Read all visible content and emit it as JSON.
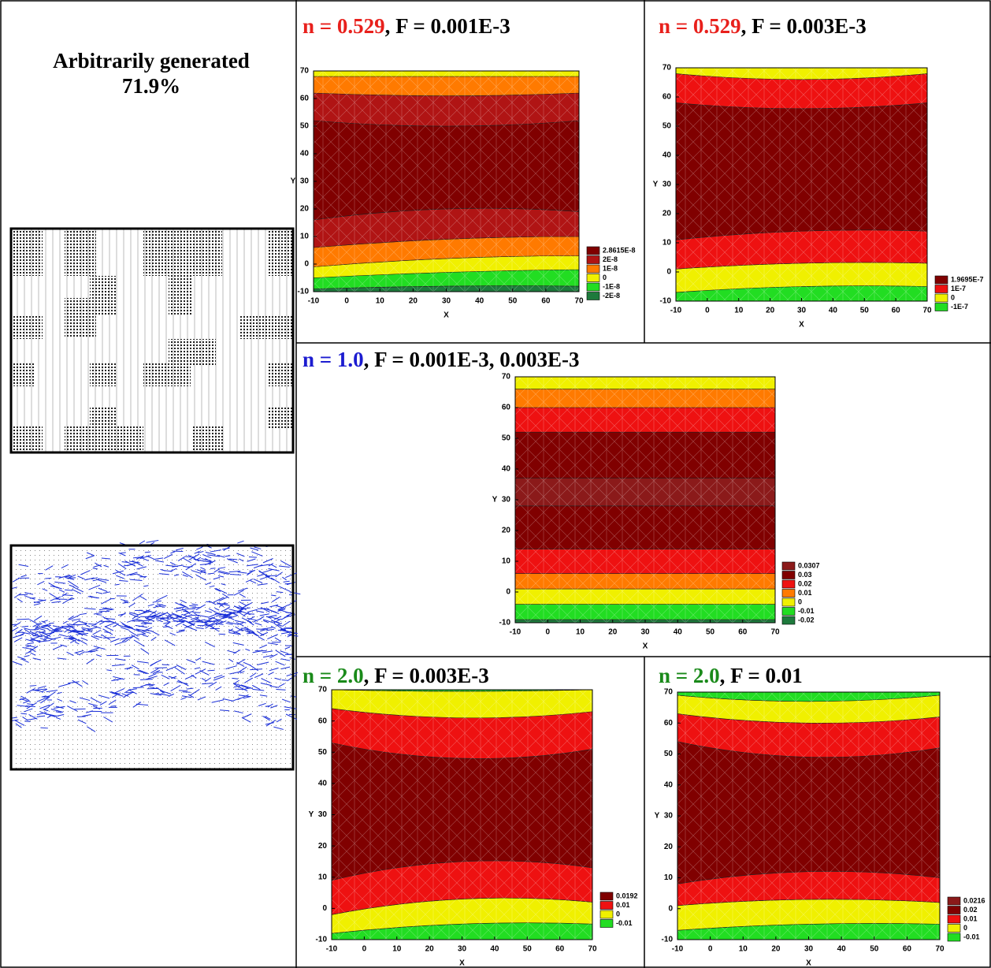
{
  "intro": {
    "title": "Arbitrarily generated",
    "percent": "71.9%"
  },
  "panels": [
    {
      "title": {
        "n": "n = 0.529",
        "rest": ",  F = 0.001E-3",
        "n_color": "#e8201c"
      },
      "xlabel": "X",
      "ylabel": "Y",
      "xlim": [
        -10,
        70
      ],
      "ylim": [
        -10,
        70
      ],
      "xticks": [
        -10,
        0,
        10,
        20,
        30,
        40,
        50,
        60,
        70
      ],
      "yticks": [
        -10,
        0,
        10,
        20,
        30,
        40,
        50,
        60,
        70
      ],
      "bands": [
        {
          "color": "#1e7a3c",
          "upper": [
            -9,
            -8,
            -8
          ]
        },
        {
          "color": "#22dd22",
          "upper": [
            -5,
            -3,
            -2
          ]
        },
        {
          "color": "#f0f000",
          "upper": [
            -1,
            2,
            3
          ]
        },
        {
          "color": "#ff7a00",
          "upper": [
            6,
            9,
            10
          ]
        },
        {
          "color": "#b01414",
          "upper": [
            16,
            20,
            19
          ]
        },
        {
          "color": "#800000",
          "upper": [
            52,
            50,
            52
          ]
        },
        {
          "color": "#b01414",
          "upper": [
            62,
            61,
            62
          ]
        },
        {
          "color": "#ff7a00",
          "upper": [
            68,
            68,
            68
          ]
        },
        {
          "color": "#f0f000"
        }
      ],
      "legend": [
        {
          "label": "2.8615E-8",
          "color": "#800000"
        },
        {
          "label": "2E-8",
          "color": "#b01414"
        },
        {
          "label": "1E-8",
          "color": "#ff7a00"
        },
        {
          "label": "0",
          "color": "#f0f000"
        },
        {
          "label": "-1E-8",
          "color": "#22dd22"
        },
        {
          "label": "-2E-8",
          "color": "#1e7a3c"
        }
      ]
    },
    {
      "title": {
        "n": "n = 0.529",
        "rest": ",  F = 0.003E-3",
        "n_color": "#e8201c"
      },
      "xlabel": "X",
      "ylabel": "Y",
      "xlim": [
        -10,
        70
      ],
      "ylim": [
        -10,
        70
      ],
      "xticks": [
        -10,
        0,
        10,
        20,
        30,
        40,
        50,
        60,
        70
      ],
      "yticks": [
        -10,
        0,
        10,
        20,
        30,
        40,
        50,
        60,
        70
      ],
      "bands": [
        {
          "color": "#22dd22",
          "upper": [
            -7,
            -5,
            -5
          ]
        },
        {
          "color": "#f0f000",
          "upper": [
            1,
            3,
            3
          ]
        },
        {
          "color": "#ee1111",
          "upper": [
            11,
            14,
            14
          ]
        },
        {
          "color": "#800000",
          "upper": [
            58,
            56,
            58
          ]
        },
        {
          "color": "#ee1111",
          "upper": [
            68,
            66,
            68
          ]
        },
        {
          "color": "#f0f000"
        }
      ],
      "legend": [
        {
          "label": "1.9695E-7",
          "color": "#800000"
        },
        {
          "label": "1E-7",
          "color": "#ee1111"
        },
        {
          "label": "0",
          "color": "#f0f000"
        },
        {
          "label": "-1E-7",
          "color": "#22dd22"
        }
      ]
    },
    {
      "title": {
        "n": "n = 1.0",
        "rest": ",  F = 0.001E-3, 0.003E-3",
        "n_color": "#1c1cd0"
      },
      "xlabel": "X",
      "ylabel": "Y",
      "xlim": [
        -10,
        70
      ],
      "ylim": [
        -10,
        70
      ],
      "xticks": [
        -10,
        0,
        10,
        20,
        30,
        40,
        50,
        60,
        70
      ],
      "yticks": [
        -10,
        0,
        10,
        20,
        30,
        40,
        50,
        60,
        70
      ],
      "bands": [
        {
          "color": "#1e7a3c",
          "upper": [
            -9,
            -9,
            -9
          ]
        },
        {
          "color": "#22dd22",
          "upper": [
            -4,
            -4,
            -4
          ]
        },
        {
          "color": "#f0f000",
          "upper": [
            1,
            1,
            1
          ]
        },
        {
          "color": "#ff7a00",
          "upper": [
            6,
            6,
            6
          ]
        },
        {
          "color": "#ee1111",
          "upper": [
            14,
            14,
            14
          ]
        },
        {
          "color": "#800000",
          "upper": [
            28,
            28,
            28
          ]
        },
        {
          "color": "#8b1a1a",
          "upper": [
            37,
            37,
            37
          ]
        },
        {
          "color": "#800000",
          "upper": [
            52,
            52,
            52
          ]
        },
        {
          "color": "#ee1111",
          "upper": [
            60,
            60,
            60
          ]
        },
        {
          "color": "#ff7a00",
          "upper": [
            66,
            66,
            66
          ]
        },
        {
          "color": "#f0f000"
        }
      ],
      "legend": [
        {
          "label": "0.0307",
          "color": "#8b1a1a"
        },
        {
          "label": "0.03",
          "color": "#800000"
        },
        {
          "label": "0.02",
          "color": "#ee1111"
        },
        {
          "label": "0.01",
          "color": "#ff7a00"
        },
        {
          "label": "0",
          "color": "#f0f000"
        },
        {
          "label": "-0.01",
          "color": "#22dd22"
        },
        {
          "label": "-0.02",
          "color": "#1e7a3c"
        }
      ]
    },
    {
      "title": {
        "n": "n = 2.0",
        "rest": ",  F = 0.003E-3",
        "n_color": "#1a8a1a"
      },
      "xlabel": "X",
      "ylabel": "Y",
      "xlim": [
        -10,
        70
      ],
      "ylim": [
        -10,
        70
      ],
      "xticks": [
        -10,
        0,
        10,
        20,
        30,
        40,
        50,
        60,
        70
      ],
      "yticks": [
        -10,
        0,
        10,
        20,
        30,
        40,
        50,
        60,
        70
      ],
      "bands": [
        {
          "color": "#22dd22",
          "upper": [
            -8,
            -5,
            -5
          ]
        },
        {
          "color": "#f0f000",
          "upper": [
            -2,
            3,
            2
          ]
        },
        {
          "color": "#ee1111",
          "upper": [
            9,
            15,
            13
          ]
        },
        {
          "color": "#800000",
          "upper": [
            53,
            48,
            51
          ]
        },
        {
          "color": "#ee1111",
          "upper": [
            64,
            61,
            63
          ]
        },
        {
          "color": "#f0f000",
          "upper": [
            70,
            69.5,
            70
          ]
        },
        {
          "color": "#22dd22"
        }
      ],
      "legend": [
        {
          "label": "0.0192",
          "color": "#800000"
        },
        {
          "label": "0.01",
          "color": "#ee1111"
        },
        {
          "label": "0",
          "color": "#f0f000"
        },
        {
          "label": "-0.01",
          "color": "#22dd22"
        }
      ]
    },
    {
      "title": {
        "n": "n = 2.0",
        "rest": ", F = 0.01",
        "n_color": "#1a8a1a"
      },
      "xlabel": "X",
      "ylabel": "Y",
      "xlim": [
        -10,
        70
      ],
      "ylim": [
        -10,
        70
      ],
      "xticks": [
        -10,
        0,
        10,
        20,
        30,
        40,
        50,
        60,
        70
      ],
      "yticks": [
        -10,
        0,
        10,
        20,
        30,
        40,
        50,
        60,
        70
      ],
      "bands": [
        {
          "color": "#22dd22",
          "upper": [
            -7,
            -5,
            -5
          ]
        },
        {
          "color": "#f0f000",
          "upper": [
            1,
            3,
            2
          ]
        },
        {
          "color": "#ee1111",
          "upper": [
            8,
            12,
            10
          ]
        },
        {
          "color": "#800000",
          "upper": [
            54,
            49,
            52
          ]
        },
        {
          "color": "#ee1111",
          "upper": [
            63,
            60,
            62
          ]
        },
        {
          "color": "#f0f000",
          "upper": [
            69,
            67,
            69
          ]
        },
        {
          "color": "#22dd22"
        }
      ],
      "legend": [
        {
          "label": "0.0216",
          "color": "#8b1a1a"
        },
        {
          "label": "0.02",
          "color": "#800000"
        },
        {
          "label": "0.01",
          "color": "#ee1111"
        },
        {
          "label": "0",
          "color": "#f0f000"
        },
        {
          "label": "-0.01",
          "color": "#22dd22"
        }
      ]
    }
  ]
}
